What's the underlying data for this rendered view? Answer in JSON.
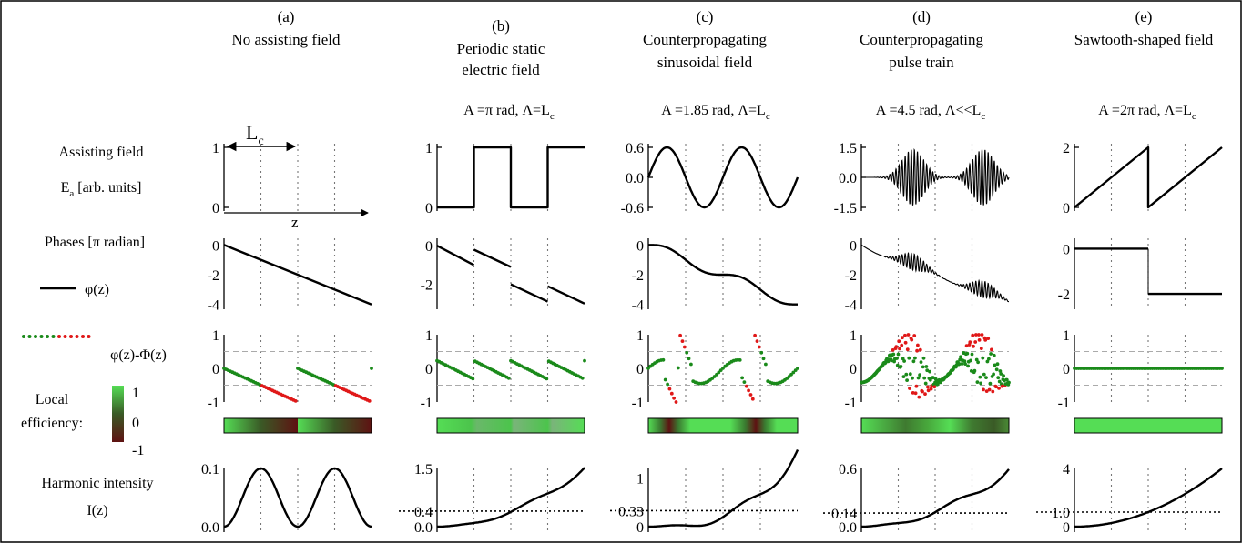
{
  "columns": [
    {
      "id": "a",
      "label": "(a)",
      "title": [
        "No assisting field"
      ],
      "params": ""
    },
    {
      "id": "b",
      "label": "(b)",
      "title": [
        "Periodic static",
        "electric field"
      ],
      "params": "A =π rad, Λ=L",
      "params_sub": "c"
    },
    {
      "id": "c",
      "label": "(c)",
      "title": [
        "Counterpropagating",
        "sinusoidal field"
      ],
      "params": "A =1.85 rad, Λ=L",
      "params_sub": "c"
    },
    {
      "id": "d",
      "label": "(d)",
      "title": [
        "Counterpropagating",
        "pulse train"
      ],
      "params": "A =4.5 rad, Λ<<L",
      "params_sub": "c"
    },
    {
      "id": "e",
      "label": "(e)",
      "title": [
        "Sawtooth-shaped field"
      ],
      "params": "A =2π rad, Λ=L",
      "params_sub": "c"
    }
  ],
  "row_labels": {
    "field": [
      "Assisting field",
      "E"
    ],
    "field_sub": "a",
    "field_unit": "[arb. units]",
    "phases": "Phases [π radian]",
    "phi_legend": "φ(z)",
    "phase_diff_legend": "φ(z)-Φ(z)",
    "local_eff": [
      "Local",
      "efficiency:"
    ],
    "intensity": [
      "Harmonic intensity",
      "I(z)"
    ]
  },
  "annotations": {
    "coherence_length": "L",
    "coherence_length_sub": "c",
    "z_axis": "z"
  },
  "colorbar": {
    "ticks": [
      "1",
      "0",
      "-1"
    ],
    "low": "#5e1212",
    "mid": "#3a5a26",
    "high": "#55dd55"
  },
  "ticks": {
    "field": {
      "a": [
        "1",
        "0"
      ],
      "b": [
        "1",
        "0"
      ],
      "c": [
        "0.6",
        "0.0",
        "-0.6"
      ],
      "d": [
        "1.5",
        "0.0",
        "-1.5"
      ],
      "e": [
        "2",
        "0"
      ]
    },
    "phase": {
      "a": [
        "0",
        "-2",
        "-4"
      ],
      "b": [
        "0",
        "-2"
      ],
      "c": [
        "0",
        "-2",
        "-4"
      ],
      "d": [
        "0",
        "-2",
        "-4"
      ],
      "e": [
        "0",
        "-2"
      ]
    },
    "pdiff": [
      "1",
      "0",
      "-1"
    ],
    "intensity": {
      "a": [
        "0.1",
        "0.0"
      ],
      "b": [
        "1.5",
        "0.4",
        "0.0"
      ],
      "c": [
        "1",
        "0.33",
        "0"
      ],
      "d": [
        "0.6",
        "0.14",
        "0.0"
      ],
      "e": [
        "4",
        "1.0",
        "0"
      ]
    }
  },
  "chart_data": [
    {
      "type": "line",
      "panel": "a-field",
      "x": [
        0,
        4
      ],
      "y": [
        0,
        0
      ],
      "ylim": [
        0,
        1
      ]
    },
    {
      "type": "line",
      "panel": "b-field",
      "description_values": "square wave 0/1 with period 2 Lc",
      "x": [
        0,
        1,
        1,
        2,
        2,
        3,
        3,
        4
      ],
      "y": [
        0,
        0,
        1,
        1,
        0,
        0,
        1,
        1
      ],
      "ylim": [
        0,
        1
      ]
    },
    {
      "type": "line",
      "panel": "c-field",
      "function": "0.6*sin(pi*z)",
      "xlim": [
        0,
        4
      ],
      "ylim": [
        -0.6,
        0.6
      ]
    },
    {
      "type": "line",
      "panel": "d-field",
      "function": "pulse train, envelope peak 1.5",
      "xlim": [
        0,
        4
      ],
      "ylim": [
        -1.5,
        1.5
      ]
    },
    {
      "type": "line",
      "panel": "e-field",
      "x": [
        0,
        2,
        2,
        4
      ],
      "y": [
        0,
        2,
        0,
        2
      ],
      "ylim": [
        0,
        2
      ]
    },
    {
      "type": "line",
      "panel": "a-phase",
      "x": [
        0,
        4
      ],
      "y": [
        0,
        -4
      ],
      "ylim": [
        -4,
        0
      ]
    },
    {
      "type": "line",
      "panel": "c-phase",
      "ylim": [
        -4,
        0
      ]
    },
    {
      "type": "line",
      "panel": "e-phase",
      "x": [
        0,
        2,
        2,
        4
      ],
      "y": [
        0,
        0,
        -2,
        -2
      ],
      "ylim": [
        -2,
        0
      ]
    },
    {
      "type": "scatter",
      "panel": "phase-difference",
      "ylim": [
        -1,
        1
      ],
      "series": [
        {
          "name": "φ(z)-Φ(z)"
        }
      ]
    },
    {
      "type": "line",
      "panel": "a-intensity",
      "function": "0.1*sin^2(pi*z/2)",
      "ylim": [
        0,
        0.1
      ]
    },
    {
      "type": "line",
      "panel": "b-intensity",
      "ylim": [
        0,
        1.5
      ],
      "reference": 0.4
    },
    {
      "type": "line",
      "panel": "c-intensity",
      "ylim": [
        0,
        1.2
      ],
      "reference": 0.33
    },
    {
      "type": "line",
      "panel": "d-intensity",
      "ylim": [
        0,
        0.6
      ],
      "reference": 0.14
    },
    {
      "type": "line",
      "panel": "e-intensity",
      "function": "0.25*z^2",
      "ylim": [
        0,
        4
      ],
      "reference": 1.0
    }
  ]
}
